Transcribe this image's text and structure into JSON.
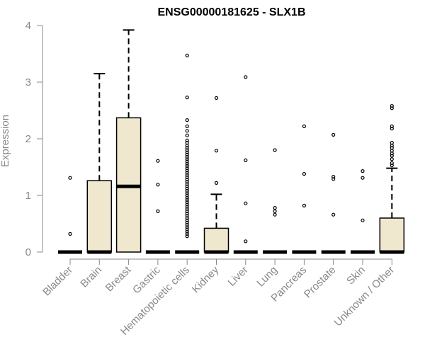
{
  "chart_data": {
    "type": "box",
    "title": "ENSG00000181625 - SLX1B",
    "xlabel": "",
    "ylabel": "Expression",
    "ylim": [
      0,
      4
    ],
    "yticks": [
      0,
      1,
      2,
      3,
      4
    ],
    "grid": false,
    "colors": {
      "box_fill": "#efe8cf",
      "stroke": "#000000",
      "axis": "#888888"
    },
    "categories": [
      "Bladder",
      "Brain",
      "Breast",
      "Gastric",
      "Hematopoietic cells",
      "Kidney",
      "Liver",
      "Lung",
      "Pancreas",
      "Prostate",
      "Skin",
      "Unknown / Other"
    ],
    "boxes": [
      {
        "category": "Bladder",
        "q1": 0,
        "median": 0,
        "q3": 0,
        "whisker_low": 0,
        "whisker_high": 0,
        "outliers": [
          1.31,
          0.32
        ]
      },
      {
        "category": "Brain",
        "q1": 0,
        "median": 0,
        "q3": 1.26,
        "whisker_low": 0,
        "whisker_high": 3.15,
        "outliers": []
      },
      {
        "category": "Breast",
        "q1": 0,
        "median": 1.16,
        "q3": 2.37,
        "whisker_low": 0,
        "whisker_high": 3.92,
        "outliers": []
      },
      {
        "category": "Gastric",
        "q1": 0,
        "median": 0,
        "q3": 0,
        "whisker_low": 0,
        "whisker_high": 0,
        "outliers": [
          1.61,
          1.19,
          0.72
        ]
      },
      {
        "category": "Hematopoietic cells",
        "q1": 0,
        "median": 0,
        "q3": 0,
        "whisker_low": 0,
        "whisker_high": 0,
        "outliers": [
          3.47,
          2.73,
          2.33,
          2.22,
          2.14,
          2.06,
          1.97,
          1.93,
          1.88,
          1.84,
          1.8,
          1.76,
          1.72,
          1.68,
          1.64,
          1.6,
          1.56,
          1.52,
          1.48,
          1.44,
          1.4,
          1.36,
          1.32,
          1.28,
          1.24,
          1.2,
          1.16,
          1.12,
          1.08,
          1.04,
          1.0,
          0.96,
          0.92,
          0.88,
          0.84,
          0.8,
          0.76,
          0.72,
          0.68,
          0.64,
          0.6,
          0.56,
          0.52,
          0.48,
          0.44,
          0.4,
          0.36,
          0.32,
          0.28
        ]
      },
      {
        "category": "Kidney",
        "q1": 0,
        "median": 0,
        "q3": 0.42,
        "whisker_low": 0,
        "whisker_high": 1.02,
        "outliers": [
          2.72,
          1.79,
          1.22
        ]
      },
      {
        "category": "Liver",
        "q1": 0,
        "median": 0,
        "q3": 0,
        "whisker_low": 0,
        "whisker_high": 0,
        "outliers": [
          3.09,
          1.62,
          0.86,
          0.19
        ]
      },
      {
        "category": "Lung",
        "q1": 0,
        "median": 0,
        "q3": 0,
        "whisker_low": 0,
        "whisker_high": 0,
        "outliers": [
          1.8,
          0.78,
          0.72,
          0.66
        ]
      },
      {
        "category": "Pancreas",
        "q1": 0,
        "median": 0,
        "q3": 0,
        "whisker_low": 0,
        "whisker_high": 0,
        "outliers": [
          2.22,
          1.38,
          0.82
        ]
      },
      {
        "category": "Prostate",
        "q1": 0,
        "median": 0,
        "q3": 0,
        "whisker_low": 0,
        "whisker_high": 0,
        "outliers": [
          2.07,
          1.33,
          1.29,
          0.66
        ]
      },
      {
        "category": "Skin",
        "q1": 0,
        "median": 0,
        "q3": 0,
        "whisker_low": 0,
        "whisker_high": 0,
        "outliers": [
          1.43,
          1.31,
          0.56
        ]
      },
      {
        "category": "Unknown / Other",
        "q1": 0,
        "median": 0,
        "q3": 0.6,
        "whisker_low": 0,
        "whisker_high": 1.48,
        "outliers": [
          2.58,
          2.54,
          2.22,
          2.18,
          1.93,
          1.88,
          1.84,
          1.79,
          1.74,
          1.7,
          1.64,
          1.57,
          1.53
        ]
      }
    ]
  }
}
